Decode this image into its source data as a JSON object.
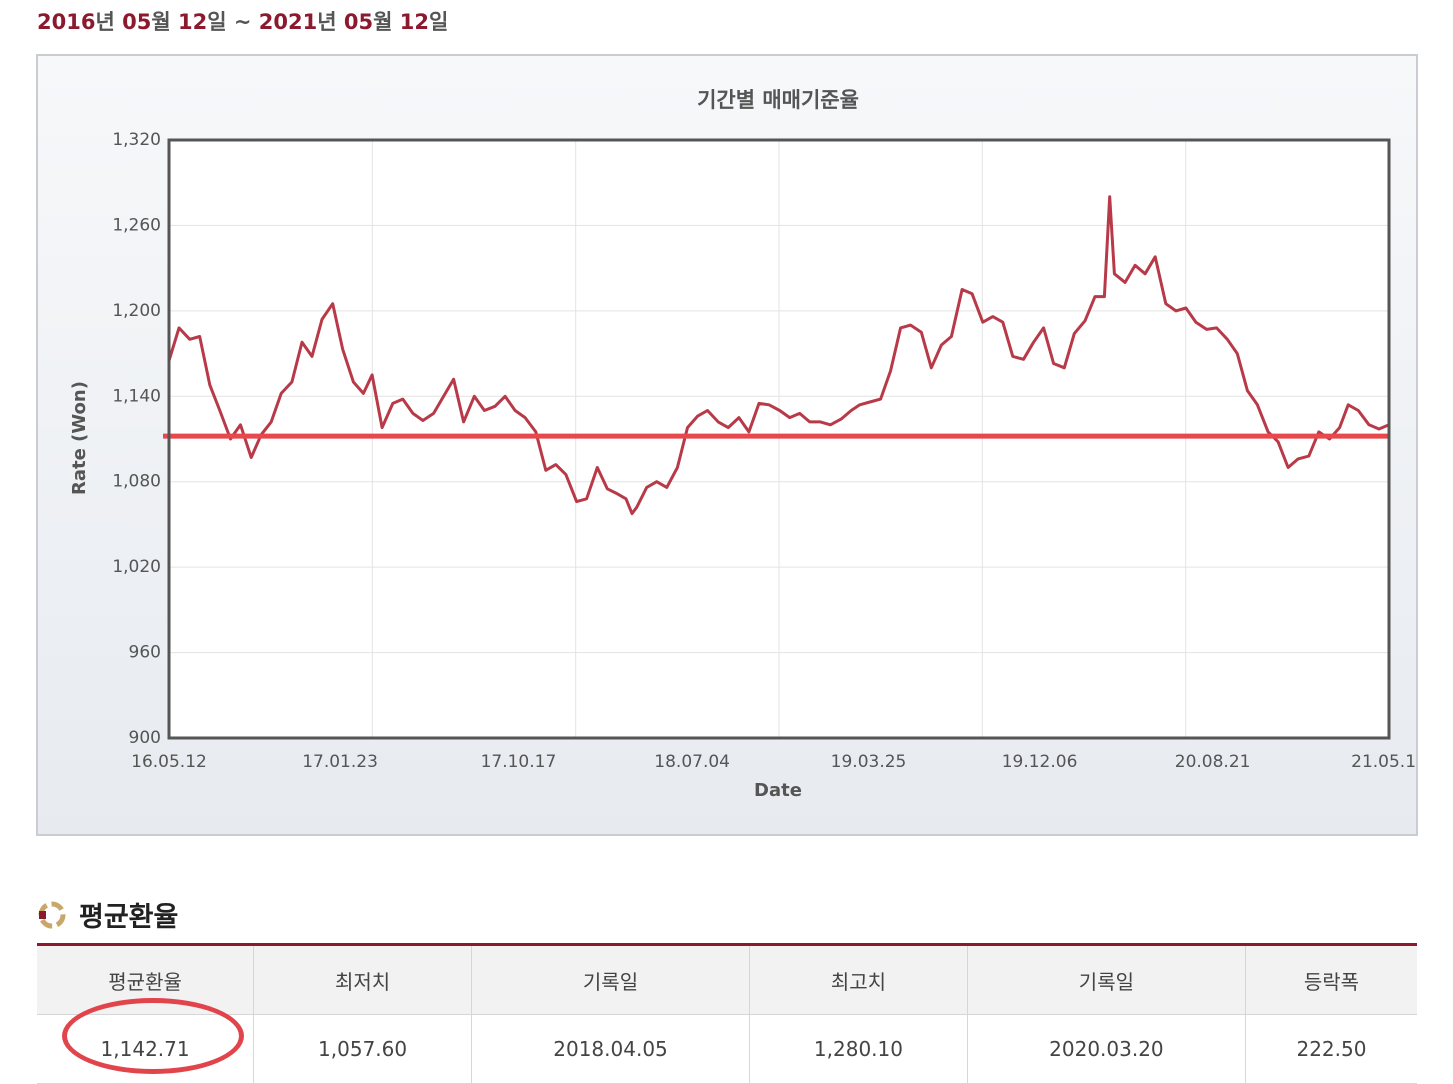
{
  "header": {
    "parts": [
      "2016",
      "년 ",
      "05",
      "월 ",
      "12",
      "일 ~ ",
      "2021",
      "년 ",
      "05",
      "월 ",
      "12",
      "일"
    ]
  },
  "chart_data": {
    "type": "line",
    "title": "기간별 매매기준율",
    "x_label": "Date",
    "y_label": "Rate (Won)",
    "color": "#b83a48",
    "grid": true,
    "x": [
      "16.05.12",
      "16.05.27",
      "16.06.12",
      "16.06.27",
      "16.07.12",
      "16.07.27",
      "16.08.12",
      "16.08.27",
      "16.09.12",
      "16.09.27",
      "16.10.12",
      "16.10.27",
      "16.11.12",
      "16.11.27",
      "16.12.12",
      "16.12.27",
      "17.01.12",
      "17.01.27",
      "17.02.12",
      "17.02.27",
      "17.03.12",
      "17.03.27",
      "17.04.12",
      "17.04.27",
      "17.05.12",
      "17.05.27",
      "17.06.12",
      "17.06.27",
      "17.07.12",
      "17.07.27",
      "17.08.12",
      "17.08.27",
      "17.09.12",
      "17.09.27",
      "17.10.12",
      "17.10.27",
      "17.11.12",
      "17.11.27",
      "17.12.12",
      "17.12.27",
      "18.01.12",
      "18.01.27",
      "18.02.12",
      "18.02.27",
      "18.03.12",
      "18.03.27",
      "18.04.05",
      "18.04.12",
      "18.04.27",
      "18.05.12",
      "18.05.27",
      "18.06.12",
      "18.06.27",
      "18.07.12",
      "18.07.27",
      "18.08.12",
      "18.08.27",
      "18.09.12",
      "18.09.27",
      "18.10.12",
      "18.10.27",
      "18.11.12",
      "18.11.27",
      "18.12.12",
      "18.12.27",
      "19.01.12",
      "19.01.27",
      "19.02.12",
      "19.02.27",
      "19.03.12",
      "19.03.27",
      "19.04.12",
      "19.04.27",
      "19.05.12",
      "19.05.27",
      "19.06.12",
      "19.06.27",
      "19.07.12",
      "19.07.27",
      "19.08.12",
      "19.08.27",
      "19.09.12",
      "19.09.27",
      "19.10.12",
      "19.10.27",
      "19.11.12",
      "19.11.27",
      "19.12.12",
      "19.12.27",
      "20.01.12",
      "20.01.27",
      "20.02.12",
      "20.02.27",
      "20.03.12",
      "20.03.20",
      "20.03.27",
      "20.04.12",
      "20.04.27",
      "20.05.12",
      "20.05.27",
      "20.06.12",
      "20.06.27",
      "20.07.12",
      "20.07.27",
      "20.08.12",
      "20.08.27",
      "20.09.12",
      "20.09.27",
      "20.10.12",
      "20.10.27",
      "20.11.12",
      "20.11.27",
      "20.12.12",
      "20.12.27",
      "21.01.12",
      "21.01.27",
      "21.02.12",
      "21.02.27",
      "21.03.12",
      "21.03.27",
      "21.04.12",
      "21.04.27",
      "21.05.12"
    ],
    "values": [
      1165,
      1188,
      1180,
      1182,
      1148,
      1130,
      1110,
      1120,
      1097,
      1113,
      1122,
      1142,
      1150,
      1178,
      1168,
      1194,
      1205,
      1173,
      1150,
      1142,
      1155,
      1118,
      1135,
      1138,
      1128,
      1123,
      1128,
      1140,
      1152,
      1122,
      1140,
      1130,
      1133,
      1140,
      1130,
      1125,
      1115,
      1088,
      1092,
      1085,
      1066,
      1068,
      1090,
      1075,
      1072,
      1068,
      1057.6,
      1062,
      1076,
      1080,
      1076,
      1090,
      1118,
      1126,
      1130,
      1122,
      1118,
      1125,
      1115,
      1135,
      1134,
      1130,
      1125,
      1128,
      1122,
      1122,
      1120,
      1124,
      1130,
      1134,
      1136,
      1138,
      1158,
      1188,
      1190,
      1185,
      1160,
      1176,
      1182,
      1215,
      1212,
      1192,
      1196,
      1192,
      1168,
      1166,
      1178,
      1188,
      1163,
      1160,
      1184,
      1193,
      1210,
      1210,
      1280.1,
      1226,
      1220,
      1232,
      1226,
      1238,
      1205,
      1200,
      1202,
      1192,
      1187,
      1188,
      1180,
      1170,
      1144,
      1134,
      1115,
      1108,
      1090,
      1096,
      1098,
      1115,
      1110,
      1118,
      1134,
      1130,
      1120,
      1117,
      1120
    ],
    "reference_line": {
      "value": 1112,
      "color": "#e8474c"
    },
    "xlim": [
      "16.05.12",
      "21.05.12"
    ],
    "xticks": [
      "16.05.12",
      "17.01.23",
      "17.10.17",
      "18.07.04",
      "19.03.25",
      "19.12.06",
      "20.08.21",
      "21.05.12"
    ],
    "ylim": [
      900,
      1320
    ],
    "yticks": [
      {
        "value": 900,
        "label": "900"
      },
      {
        "value": 960,
        "label": "960"
      },
      {
        "value": 1020,
        "label": "1,020"
      },
      {
        "value": 1080,
        "label": "1,080"
      },
      {
        "value": 1140,
        "label": "1,140"
      },
      {
        "value": 1200,
        "label": "1,200"
      },
      {
        "value": 1260,
        "label": "1,260"
      },
      {
        "value": 1320,
        "label": "1,320"
      }
    ]
  },
  "section": {
    "title": "평균환율"
  },
  "table": {
    "header": [
      "평균환율",
      "최저치",
      "기록일",
      "최고치",
      "기록일",
      "등락폭"
    ],
    "rows": [
      [
        "1,142.71",
        "1,057.60",
        "2018.04.05",
        "1,280.10",
        "2020.03.20",
        "222.50"
      ]
    ]
  }
}
